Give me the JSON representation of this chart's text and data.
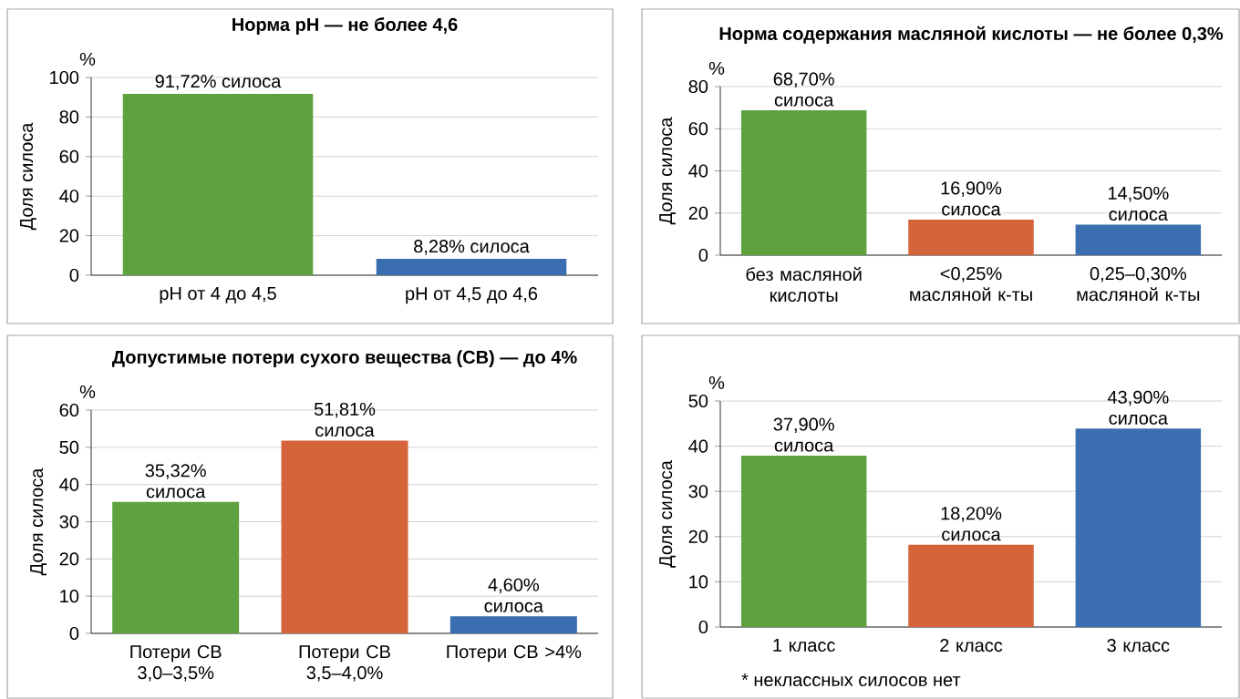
{
  "chart_data": [
    {
      "type": "bar",
      "title": "Норма pH — не более 4,6",
      "ylabel": "Доля силоса",
      "annotations": [
        "%"
      ],
      "categories": [
        "pH от 4 до 4,5",
        "pH от 4,5 до 4,6"
      ],
      "values": [
        91.72,
        8.28
      ],
      "colors": [
        "#5ea23f",
        "#3a6eb0"
      ],
      "value_labels": [
        "91,72% силоса",
        "8,28% силоса"
      ],
      "ylim": [
        0,
        100
      ],
      "yticks": [
        0,
        20,
        40,
        60,
        80,
        100
      ],
      "grid": "y"
    },
    {
      "type": "bar",
      "title": "Норма содержания масляной кислоты — не более 0,3%",
      "ylabel": "Доля силоса",
      "annotations": [
        "%"
      ],
      "categories": [
        "без масляной кислоты",
        "<0,25% масляной к-ты",
        "0,25–0,30% масляной к-ты"
      ],
      "values": [
        68.7,
        16.9,
        14.5
      ],
      "colors": [
        "#5ea23f",
        "#d5643a",
        "#3a6eb0"
      ],
      "value_labels": [
        "68,70% силоса",
        "16,90% силоса",
        "14,50% силоса"
      ],
      "ylim": [
        0,
        80
      ],
      "yticks": [
        0,
        20,
        40,
        60,
        80
      ],
      "grid": "y"
    },
    {
      "type": "bar",
      "title": "Допустимые потери сухого вещества (СВ) — до 4%",
      "ylabel": "Доля силоса",
      "annotations": [
        "%"
      ],
      "categories": [
        "Потери СВ 3,0–3,5%",
        "Потери СВ 3,5–4,0%",
        "Потери СВ >4%"
      ],
      "values": [
        35.32,
        51.81,
        4.6
      ],
      "colors": [
        "#5ea23f",
        "#d5643a",
        "#3a6eb0"
      ],
      "value_labels": [
        "35,32% силоса",
        "51,81% силоса",
        "4,60% силоса"
      ],
      "ylim": [
        0,
        60
      ],
      "yticks": [
        0,
        10,
        20,
        30,
        40,
        50,
        60
      ],
      "grid": "y"
    },
    {
      "type": "bar",
      "ylabel": "Доля силоса",
      "annotations": [
        "%",
        "* неклассных силосов нет"
      ],
      "categories": [
        "1 класс",
        "2 класс",
        "3 класс"
      ],
      "values": [
        37.9,
        18.2,
        43.9
      ],
      "colors": [
        "#5ea23f",
        "#d5643a",
        "#3a6eb0"
      ],
      "value_labels": [
        "37,90% силоса",
        "18,20% силоса",
        "43,90% силоса"
      ],
      "ylim": [
        0,
        50
      ],
      "yticks": [
        0,
        10,
        20,
        30,
        40,
        50
      ],
      "grid": "y"
    }
  ]
}
